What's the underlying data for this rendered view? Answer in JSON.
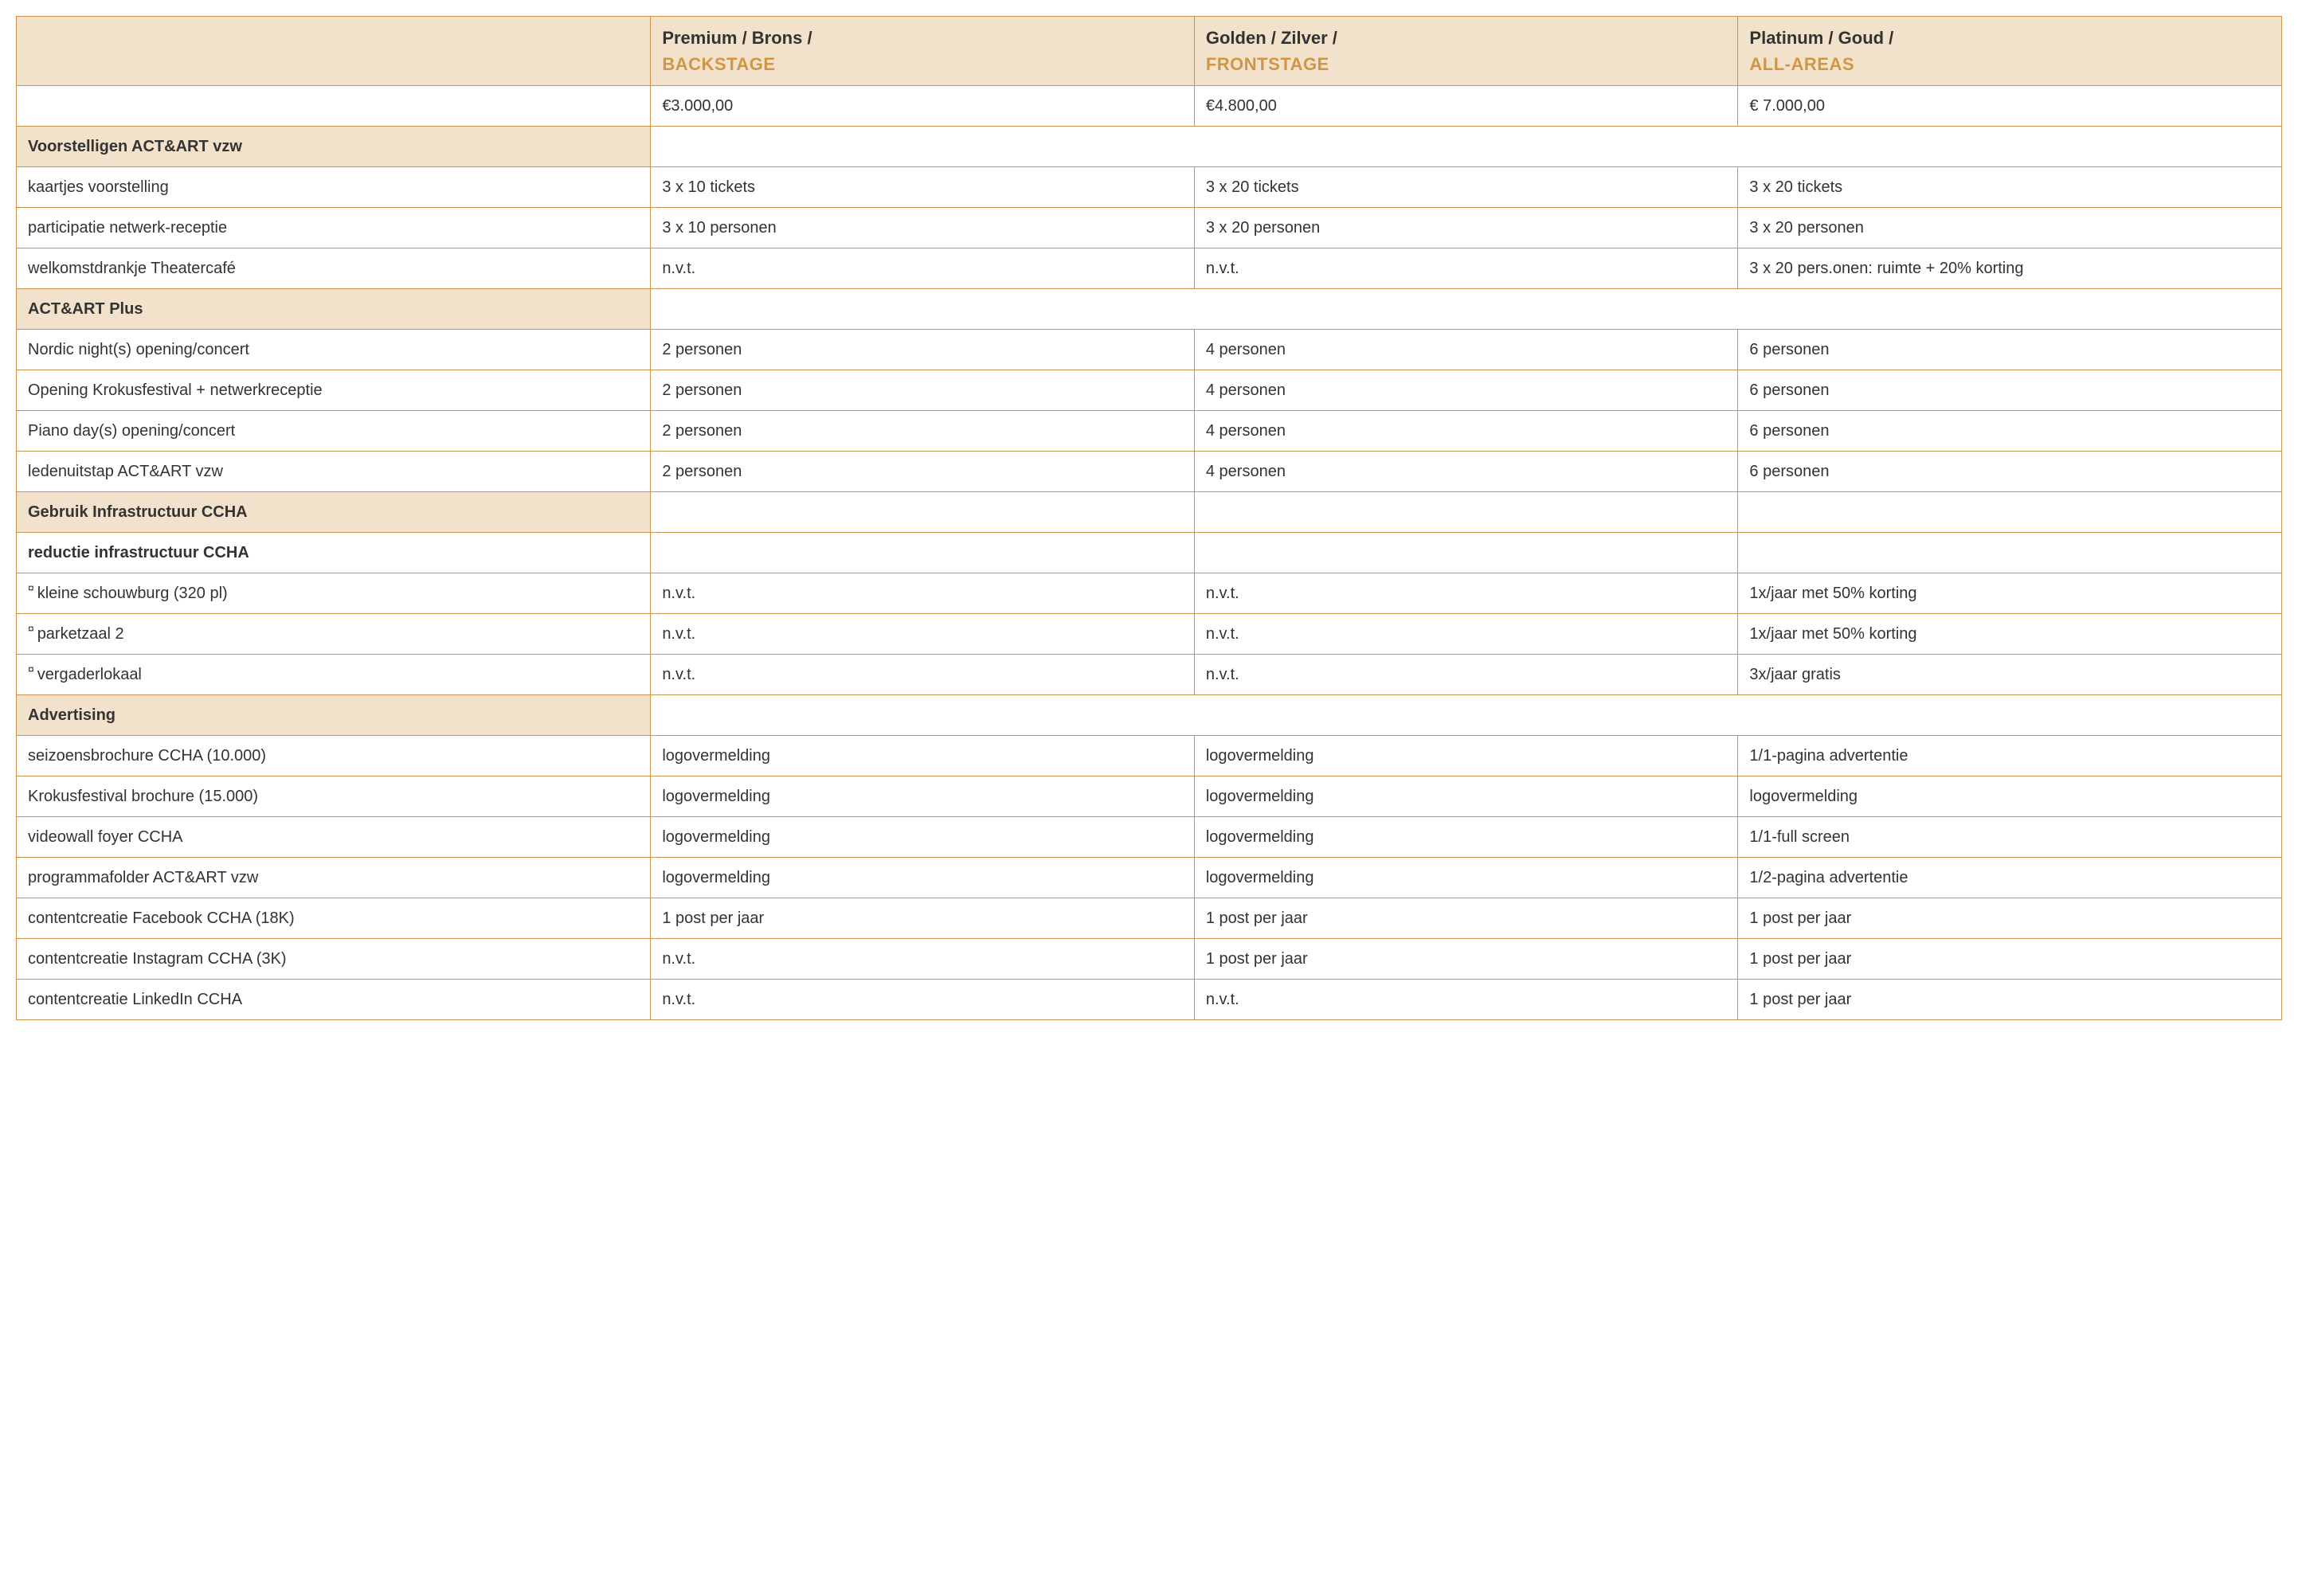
{
  "colors": {
    "border": "#c9954f",
    "section_bg": "#f3e2cb",
    "accent_text": "#cf9643",
    "body_text": "#333333",
    "page_bg": "#ffffff"
  },
  "tiers": [
    {
      "line1": "Premium / Brons /",
      "line2": "BACKSTAGE",
      "price": "€3.000,00"
    },
    {
      "line1": "Golden / Zilver /",
      "line2": "FRONTSTAGE",
      "price": "€4.800,00"
    },
    {
      "line1": "Platinum / Goud /",
      "line2": "ALL-AREAS",
      "price": "€ 7.000,00"
    }
  ],
  "sections": [
    {
      "title": "Voorstelligen ACT&ART vzw",
      "span": true,
      "rows": [
        {
          "label": "kaartjes voorstelling",
          "c": [
            "3 x 10 tickets",
            "3 x 20 tickets",
            "3 x 20 tickets"
          ]
        },
        {
          "label": "participatie netwerk-receptie",
          "c": [
            "3 x 10 personen",
            "3 x 20 personen",
            "3 x 20 personen"
          ]
        },
        {
          "label": "welkomstdrankje Theatercafé",
          "c": [
            "n.v.t.",
            "n.v.t.",
            "3 x 20 pers.onen: ruimte + 20% korting"
          ]
        }
      ]
    },
    {
      "title": "ACT&ART Plus",
      "span": true,
      "rows": [
        {
          "label": "Nordic night(s) opening/concert",
          "c": [
            "2 personen",
            "4 personen",
            "6 personen"
          ]
        },
        {
          "label": "Opening Krokusfestival + netwerkreceptie",
          "c": [
            "2 personen",
            "4 personen",
            "6 personen"
          ]
        },
        {
          "label": "Piano day(s) opening/concert",
          "c": [
            "2 personen",
            "4 personen",
            "6 personen"
          ]
        },
        {
          "label": "ledenuitstap ACT&ART vzw",
          "c": [
            "2 personen",
            "4 personen",
            "6 personen"
          ]
        }
      ]
    },
    {
      "title": "Gebruik Infrastructuur CCHA",
      "span": false,
      "rows": []
    },
    {
      "title": "reductie infrastructuur CCHA",
      "span": false,
      "white": true,
      "rows": [
        {
          "label": "kleine schouwburg (320 pl)",
          "bullet": true,
          "c": [
            "n.v.t.",
            "n.v.t.",
            "1x/jaar met 50% korting"
          ]
        },
        {
          "label": "parketzaal 2",
          "bullet": true,
          "c": [
            "n.v.t.",
            "n.v.t.",
            "1x/jaar met 50% korting"
          ]
        },
        {
          "label": "vergaderlokaal",
          "bullet": true,
          "c": [
            "n.v.t.",
            "n.v.t.",
            "3x/jaar gratis"
          ]
        }
      ]
    },
    {
      "title": "Advertising",
      "span": true,
      "rows": [
        {
          "label": "seizoensbrochure CCHA (10.000)",
          "c": [
            "logovermelding",
            "logovermelding",
            "1/1-pagina advertentie"
          ]
        },
        {
          "label": "Krokusfestival brochure (15.000)",
          "c": [
            "logovermelding",
            "logovermelding",
            "logovermelding"
          ]
        },
        {
          "label": "videowall foyer CCHA",
          "c": [
            "logovermelding",
            "logovermelding",
            "1/1-full screen"
          ]
        },
        {
          "label": "programmafolder ACT&ART vzw",
          "c": [
            "logovermelding",
            "logovermelding",
            "1/2-pagina advertentie"
          ]
        },
        {
          "label": "contentcreatie Facebook CCHA (18K)",
          "c": [
            "1 post per jaar",
            "1 post per jaar",
            "1 post per jaar"
          ]
        },
        {
          "label": "contentcreatie Instagram CCHA (3K)",
          "c": [
            "n.v.t.",
            "1 post per jaar",
            "1 post per jaar"
          ]
        },
        {
          "label": "contentcreatie LinkedIn CCHA",
          "c": [
            "n.v.t.",
            "n.v.t.",
            "1 post per jaar"
          ]
        }
      ]
    }
  ]
}
